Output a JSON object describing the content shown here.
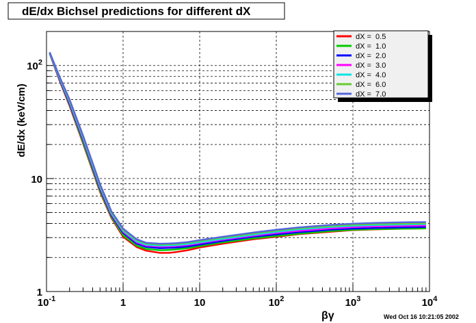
{
  "chart_data": {
    "type": "line",
    "title": "dE/dx Bichsel predictions for different dX",
    "xlabel": "βγ",
    "ylabel": "dE/dx (keV/cm)",
    "x_scale": "log",
    "y_scale": "log",
    "xlim": [
      0.1,
      10000
    ],
    "ylim": [
      1,
      200
    ],
    "grid": true,
    "legend_position": "top-right",
    "x_tick_labels": [
      {
        "base": "10",
        "exp": "-1"
      },
      {
        "base": "1",
        "exp": ""
      },
      {
        "base": "10",
        "exp": ""
      },
      {
        "base": "10",
        "exp": "2"
      },
      {
        "base": "10",
        "exp": "3"
      },
      {
        "base": "10",
        "exp": "4"
      }
    ],
    "y_tick_labels": [
      {
        "base": "1",
        "exp": ""
      },
      {
        "base": "10",
        "exp": ""
      },
      {
        "base": "10",
        "exp": "2"
      }
    ],
    "x": [
      0.11,
      0.15,
      0.2,
      0.3,
      0.5,
      0.7,
      1.0,
      1.5,
      2,
      3,
      4,
      5,
      7,
      10,
      20,
      50,
      100,
      200,
      500,
      1000,
      2000,
      5000,
      9000
    ],
    "series": [
      {
        "name": "dX =  0.5",
        "color": "#ff0000",
        "values": [
          128,
          72,
          44,
          20.5,
          7.6,
          4.5,
          3.05,
          2.48,
          2.3,
          2.2,
          2.2,
          2.24,
          2.32,
          2.45,
          2.65,
          2.9,
          3.05,
          3.22,
          3.38,
          3.5,
          3.55,
          3.6,
          3.62
        ]
      },
      {
        "name": "dX =  1.0",
        "color": "#00cc00",
        "values": [
          128,
          73,
          45,
          21,
          7.8,
          4.6,
          3.15,
          2.55,
          2.38,
          2.32,
          2.33,
          2.36,
          2.42,
          2.52,
          2.72,
          2.95,
          3.1,
          3.25,
          3.42,
          3.52,
          3.57,
          3.6,
          3.62
        ]
      },
      {
        "name": "dX =  2.0",
        "color": "#0000ff",
        "values": [
          129,
          74,
          46,
          22,
          8.1,
          4.75,
          3.3,
          2.65,
          2.48,
          2.42,
          2.43,
          2.45,
          2.5,
          2.6,
          2.8,
          3.05,
          3.2,
          3.35,
          3.52,
          3.6,
          3.65,
          3.7,
          3.72
        ]
      },
      {
        "name": "dX =  3.0",
        "color": "#ff00ff",
        "values": [
          129,
          75,
          47,
          22.5,
          8.3,
          4.85,
          3.38,
          2.72,
          2.55,
          2.5,
          2.51,
          2.53,
          2.58,
          2.68,
          2.88,
          3.12,
          3.3,
          3.45,
          3.62,
          3.72,
          3.78,
          3.82,
          3.84
        ]
      },
      {
        "name": "dX =  4.0",
        "color": "#00e5e5",
        "values": [
          130,
          76,
          48,
          23,
          8.5,
          4.95,
          3.45,
          2.78,
          2.6,
          2.55,
          2.56,
          2.58,
          2.63,
          2.73,
          2.93,
          3.18,
          3.38,
          3.55,
          3.72,
          3.82,
          3.88,
          3.92,
          3.95
        ]
      },
      {
        "name": "dX =  6.0",
        "color": "#66cc33",
        "values": [
          130,
          77,
          49,
          23.5,
          8.7,
          5.05,
          3.52,
          2.85,
          2.66,
          2.61,
          2.62,
          2.64,
          2.7,
          2.8,
          3.0,
          3.26,
          3.46,
          3.63,
          3.8,
          3.9,
          3.96,
          4.0,
          4.02
        ]
      },
      {
        "name": "dX =  7.0",
        "color": "#5566dd",
        "values": [
          131,
          78,
          50,
          24,
          8.9,
          5.15,
          3.6,
          2.9,
          2.7,
          2.65,
          2.66,
          2.68,
          2.74,
          2.85,
          3.05,
          3.32,
          3.52,
          3.7,
          3.88,
          3.98,
          4.05,
          4.1,
          4.12
        ]
      }
    ]
  },
  "footer": {
    "timestamp": "Wed Oct 16 10:21:05 2002"
  }
}
